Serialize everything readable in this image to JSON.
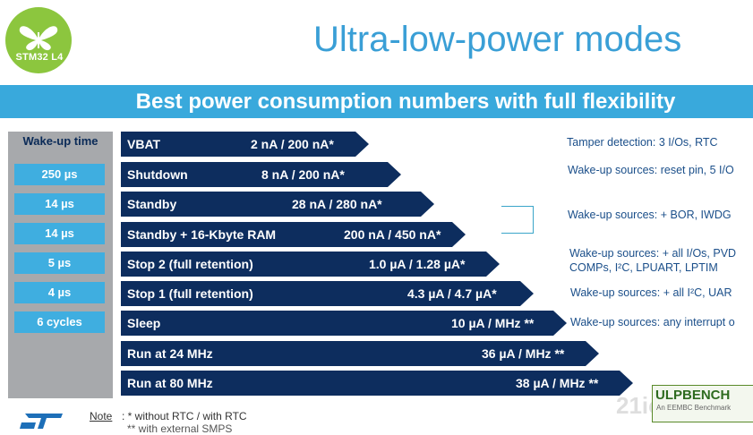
{
  "logo": {
    "text": "STM32 L4",
    "icon": "butterfly-icon",
    "color": "#8cc63e"
  },
  "title": "Ultra-low-power modes",
  "subtitle": "Best power consumption numbers with full flexibility",
  "wakeup": {
    "header": "Wake-up time",
    "values": [
      "250 µs",
      "14 µs",
      "14 µs",
      "5 µs",
      "4 µs",
      "6 cycles"
    ]
  },
  "modes": [
    {
      "label": "VBAT",
      "value": "2 nA / 200 nA*"
    },
    {
      "label": "Shutdown",
      "value": "8 nA / 200 nA*"
    },
    {
      "label": "Standby",
      "value": "28 nA / 280 nA*"
    },
    {
      "label": "Standby + 16-Kbyte RAM",
      "value": "200 nA / 450 nA*"
    },
    {
      "label": "Stop 2 (full retention)",
      "value": "1.0 µA / 1.28 µA*"
    },
    {
      "label": "Stop 1 (full retention)",
      "value": "4.3 µA / 4.7 µA*"
    },
    {
      "label": "Sleep",
      "value": "10 µA / MHz **"
    },
    {
      "label": "Run at 24 MHz",
      "value": "36 µA / MHz **"
    },
    {
      "label": "Run at 80 MHz",
      "value": "38 µA / MHz **"
    }
  ],
  "notes": {
    "vbat": "Tamper detection: 3 I/Os, RTC",
    "shutdown": "Wake-up sources: reset pin, 5 I/O",
    "standby": "Wake-up sources: + BOR, IWDG",
    "stop2_line1": "Wake-up sources: + all I/Os, PVD",
    "stop2_line2": "COMPs, I²C, LPUART, LPTIM",
    "stop1": "Wake-up sources: + all I²C, UAR",
    "sleep": "Wake-up sources: any interrupt o"
  },
  "footnote": {
    "prefix": "Note",
    "line1": ": * without RTC / with RTC",
    "line2": "** with external SMPS"
  },
  "badge": {
    "title": "ULPBENCH",
    "subtitle": "An EEMBC Benchmark"
  },
  "watermark": "21ic.com",
  "colors": {
    "bar": "#0d2d5e",
    "accent": "#39a9dc",
    "column": "#a7a9ac"
  }
}
